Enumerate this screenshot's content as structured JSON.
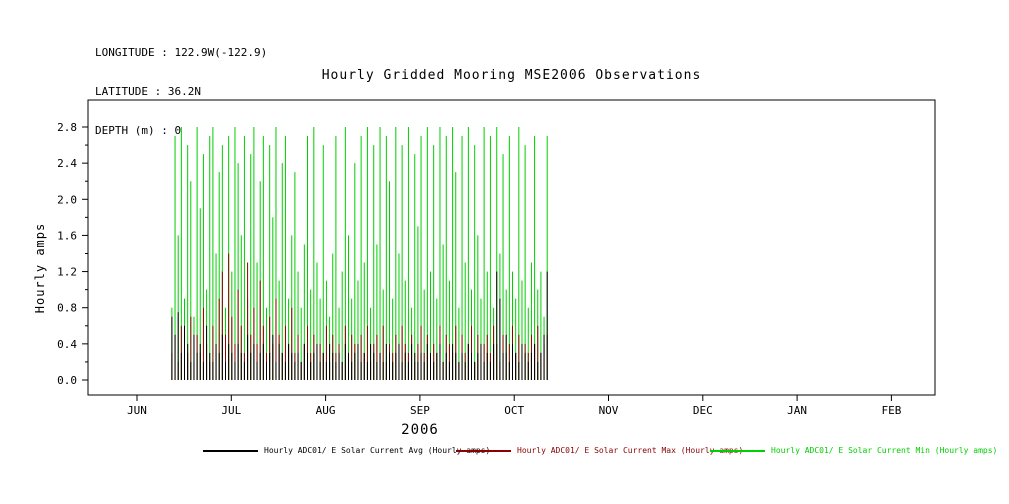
{
  "header": {
    "line1": "LONGITUDE : 122.9W(-122.9)",
    "line2": "LATITUDE : 36.2N",
    "line3": "DEPTH (m) : 0"
  },
  "title": "Hourly Gridded Mooring MSE2006 Observations",
  "ylabel": "Hourly amps",
  "xlabel_year": "2006",
  "chart_data": {
    "type": "line",
    "title": "Hourly Gridded Mooring MSE2006 Observations",
    "xlabel": "2006",
    "ylabel": "Hourly amps",
    "ylim": [
      -0.17,
      3.1
    ],
    "grid": false,
    "legend_position": "bottom",
    "yticks": [
      "0.0",
      "0.4",
      "0.8",
      "1.2",
      "1.6",
      "2.0",
      "2.4",
      "2.8"
    ],
    "xticks": [
      "JUN",
      "JUL",
      "AUG",
      "SEP",
      "OCT",
      "NOV",
      "DEC",
      "JAN",
      "FEB"
    ],
    "x_start_month": 0.37,
    "x_end_month": 4.35,
    "series": [
      {
        "name": "Hourly ADC01/ E Solar Current Avg (Hourly amps)",
        "color": "#000000",
        "peaks": [
          0.7,
          0.5,
          0.75,
          0.3,
          0.6,
          0.4,
          0.2,
          0.5,
          0.3,
          0.4,
          0.2,
          0.6,
          0.3,
          0.2,
          0.4,
          0.3,
          0.5,
          0.2,
          0.4,
          0.3,
          0.2,
          0.4,
          0.3,
          0.2,
          0.5,
          0.3,
          0.4,
          0.2,
          0.3,
          0.4,
          0.2,
          0.3,
          0.5,
          0.2,
          0.4,
          0.3,
          0.2,
          0.4,
          0.3,
          0.2,
          0.3,
          0.2,
          0.4,
          0.3,
          0.2,
          0.3,
          0.4,
          0.2,
          0.3,
          0.2,
          0.4,
          0.3,
          0.2,
          0.3,
          0.2,
          0.4,
          0.3,
          0.2,
          0.3,
          0.4,
          0.2,
          0.3,
          0.2,
          0.4,
          0.3,
          0.2,
          0.3,
          0.2,
          0.4,
          0.3,
          0.2,
          0.3,
          0.4,
          0.2,
          0.3,
          0.2,
          0.4,
          0.3,
          0.2,
          0.3,
          0.2,
          0.4,
          0.3,
          0.2,
          0.3,
          0.4,
          0.2,
          0.3,
          0.2,
          0.4,
          0.3,
          0.2,
          0.3,
          0.2,
          0.4,
          0.3,
          0.2,
          0.3,
          0.4,
          0.2,
          0.3,
          0.2,
          0.4,
          1.2,
          0.9,
          0.3,
          0.5,
          0.2,
          0.4,
          0.3,
          0.2,
          0.4,
          0.3,
          0.2,
          0.3,
          0.4,
          0.2,
          0.3,
          0.5,
          1.2
        ]
      },
      {
        "name": "Hourly ADC01/ E Solar Current Max (Hourly amps)",
        "color": "#8b0000",
        "peaks": [
          0.3,
          0.5,
          0.2,
          0.6,
          0.4,
          0.3,
          0.7,
          0.2,
          0.5,
          0.3,
          0.8,
          0.4,
          0.2,
          0.6,
          0.3,
          0.9,
          1.2,
          0.5,
          1.4,
          0.7,
          0.4,
          1.0,
          0.6,
          0.3,
          1.3,
          0.5,
          0.8,
          0.4,
          1.1,
          0.6,
          0.3,
          0.7,
          0.4,
          0.9,
          0.5,
          0.3,
          0.6,
          0.4,
          0.8,
          0.3,
          0.5,
          0.2,
          0.4,
          0.6,
          0.3,
          0.5,
          0.2,
          0.4,
          0.3,
          0.6,
          0.2,
          0.5,
          0.3,
          0.4,
          0.2,
          0.6,
          0.3,
          0.5,
          0.4,
          0.2,
          0.5,
          0.3,
          0.6,
          0.2,
          0.4,
          0.5,
          0.3,
          0.6,
          0.2,
          0.4,
          0.3,
          0.5,
          0.2,
          0.6,
          0.4,
          0.3,
          0.5,
          0.2,
          0.4,
          0.6,
          0.3,
          0.5,
          0.2,
          0.4,
          0.3,
          0.6,
          0.2,
          0.5,
          0.4,
          0.3,
          0.6,
          0.2,
          0.5,
          0.3,
          0.4,
          0.6,
          0.2,
          0.5,
          0.3,
          0.4,
          0.5,
          0.3,
          0.6,
          0.4,
          0.2,
          0.5,
          0.3,
          0.4,
          0.6,
          0.3,
          0.5,
          0.2,
          0.4,
          0.3,
          0.5,
          0.4,
          0.6,
          0.3,
          0.4,
          0.5
        ]
      },
      {
        "name": "Hourly ADC01/ E Solar Current Min (Hourly amps)",
        "color": "#00cf00",
        "peaks": [
          0.8,
          2.7,
          1.6,
          2.8,
          0.9,
          2.6,
          2.2,
          0.7,
          2.8,
          1.9,
          2.5,
          1.0,
          2.7,
          2.8,
          1.4,
          2.3,
          2.6,
          0.8,
          2.7,
          1.2,
          2.8,
          2.4,
          1.6,
          2.7,
          0.9,
          2.5,
          2.8,
          1.3,
          2.2,
          2.7,
          0.8,
          2.6,
          1.8,
          2.8,
          1.1,
          2.4,
          2.7,
          0.9,
          1.6,
          2.3,
          1.2,
          0.8,
          1.5,
          2.7,
          1.0,
          2.8,
          1.3,
          0.9,
          2.6,
          1.1,
          0.7,
          1.4,
          2.7,
          0.8,
          1.2,
          2.8,
          1.6,
          0.9,
          2.4,
          1.1,
          2.7,
          1.3,
          2.8,
          0.8,
          2.6,
          1.5,
          2.8,
          1.0,
          2.7,
          2.2,
          0.9,
          2.8,
          1.4,
          2.6,
          1.1,
          2.8,
          0.8,
          2.5,
          1.7,
          2.7,
          1.0,
          2.8,
          1.2,
          2.6,
          0.9,
          2.8,
          1.5,
          2.7,
          1.1,
          2.8,
          2.3,
          0.8,
          2.7,
          1.3,
          2.8,
          1.0,
          2.6,
          1.6,
          0.9,
          2.8,
          1.2,
          2.7,
          0.8,
          2.8,
          1.4,
          2.5,
          1.0,
          2.7,
          1.2,
          0.9,
          2.8,
          1.1,
          2.6,
          0.8,
          1.3,
          2.7,
          1.0,
          1.2,
          0.7,
          2.7
        ]
      }
    ]
  }
}
